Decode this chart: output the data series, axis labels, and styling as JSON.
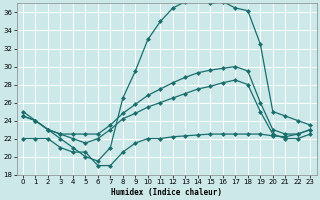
{
  "xlabel": "Humidex (Indice chaleur)",
  "background_color": "#cce8e8",
  "grid_color": "#b0d4d4",
  "line_color": "#1a6e6e",
  "xlim": [
    -0.5,
    23.5
  ],
  "ylim": [
    18,
    37
  ],
  "yticks": [
    18,
    20,
    22,
    24,
    26,
    28,
    30,
    32,
    34,
    36
  ],
  "xticks": [
    0,
    1,
    2,
    3,
    4,
    5,
    6,
    7,
    8,
    9,
    10,
    11,
    12,
    13,
    14,
    15,
    16,
    17,
    18,
    19,
    20,
    21,
    22,
    23
  ],
  "line1_x": [
    0,
    1,
    2,
    3,
    4,
    5,
    6,
    7,
    8,
    9,
    10,
    11,
    12,
    13,
    14,
    15,
    16,
    17,
    18,
    19,
    20,
    21,
    22,
    23
  ],
  "line1_y": [
    25.0,
    24.0,
    23.0,
    22.0,
    21.0,
    20.0,
    19.5,
    21.0,
    26.5,
    29.5,
    33.0,
    35.0,
    36.5,
    37.2,
    37.5,
    37.0,
    37.2,
    36.5,
    36.2,
    32.5,
    25.0,
    24.5,
    24.0,
    23.5
  ],
  "line2_x": [
    0,
    1,
    2,
    3,
    4,
    5,
    6,
    7,
    8,
    9,
    10,
    11,
    12,
    13,
    14,
    15,
    16,
    17,
    18,
    19,
    20,
    21,
    22,
    23
  ],
  "line2_y": [
    24.5,
    24.0,
    23.0,
    22.5,
    22.5,
    22.5,
    22.5,
    23.5,
    24.8,
    25.8,
    26.8,
    27.5,
    28.2,
    28.8,
    29.3,
    29.6,
    29.8,
    30.0,
    29.5,
    26.0,
    23.0,
    22.5,
    22.5,
    23.0
  ],
  "line3_x": [
    0,
    1,
    2,
    3,
    4,
    5,
    6,
    7,
    8,
    9,
    10,
    11,
    12,
    13,
    14,
    15,
    16,
    17,
    18,
    19,
    20,
    21,
    22,
    23
  ],
  "line3_y": [
    24.5,
    24.0,
    23.0,
    22.5,
    22.0,
    21.5,
    22.0,
    23.0,
    24.2,
    24.8,
    25.5,
    26.0,
    26.5,
    27.0,
    27.5,
    27.8,
    28.2,
    28.5,
    28.0,
    25.0,
    22.5,
    22.0,
    22.0,
    22.5
  ],
  "line4_x": [
    0,
    1,
    2,
    3,
    4,
    5,
    6,
    7,
    8,
    9,
    10,
    11,
    12,
    13,
    14,
    15,
    16,
    17,
    18,
    19,
    20,
    21,
    22,
    23
  ],
  "line4_y": [
    22.0,
    22.0,
    22.0,
    21.0,
    20.5,
    20.5,
    19.0,
    19.0,
    20.5,
    21.5,
    22.0,
    22.0,
    22.2,
    22.3,
    22.4,
    22.5,
    22.5,
    22.5,
    22.5,
    22.5,
    22.3,
    22.2,
    22.5,
    23.0
  ]
}
